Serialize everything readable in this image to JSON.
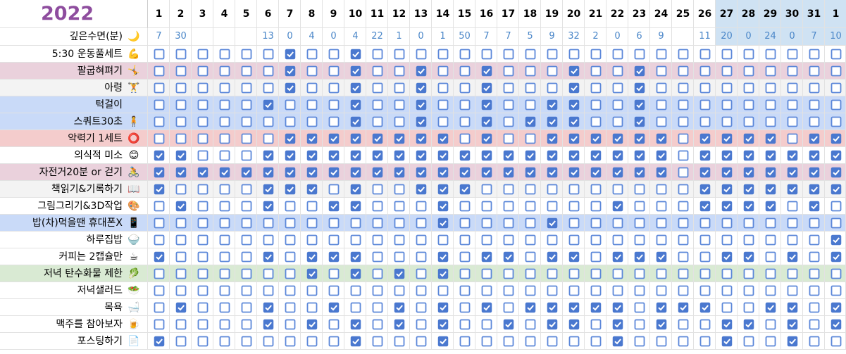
{
  "header": {
    "year": "2022",
    "days": [
      1,
      2,
      3,
      4,
      5,
      6,
      7,
      8,
      9,
      10,
      11,
      12,
      13,
      14,
      15,
      16,
      17,
      18,
      19,
      20,
      21,
      22,
      23,
      24,
      25,
      26,
      27,
      28,
      29,
      30,
      31,
      1
    ]
  },
  "sleep": {
    "label": "깊은수면(분)",
    "icon": "🌙",
    "values": [
      7,
      30,
      null,
      null,
      null,
      13,
      0,
      4,
      0,
      4,
      22,
      1,
      0,
      1,
      50,
      7,
      7,
      5,
      9,
      32,
      2,
      0,
      6,
      9,
      null,
      11,
      20,
      0,
      24,
      0,
      7,
      10
    ]
  },
  "habits": [
    {
      "label": "5:30 운동풀세트",
      "icon": "💪",
      "color": "#ffffff",
      "checks": [
        0,
        0,
        0,
        0,
        0,
        0,
        1,
        0,
        0,
        1,
        0,
        0,
        0,
        0,
        0,
        0,
        0,
        0,
        0,
        0,
        0,
        0,
        0,
        0,
        0,
        0,
        0,
        0,
        0,
        0,
        0,
        0
      ]
    },
    {
      "label": "팔굽혀펴기",
      "icon": "🤸",
      "color": "#ead1dc",
      "checks": [
        0,
        0,
        0,
        0,
        0,
        0,
        1,
        0,
        0,
        1,
        0,
        0,
        1,
        0,
        0,
        1,
        0,
        0,
        0,
        1,
        0,
        0,
        1,
        0,
        0,
        0,
        0,
        0,
        0,
        0,
        0,
        0
      ]
    },
    {
      "label": "아령",
      "icon": "🏋",
      "color": "#f3f3f3",
      "checks": [
        0,
        0,
        0,
        0,
        0,
        0,
        1,
        0,
        0,
        1,
        0,
        0,
        1,
        0,
        0,
        1,
        0,
        0,
        0,
        1,
        0,
        0,
        1,
        0,
        0,
        0,
        0,
        0,
        0,
        0,
        0,
        0
      ]
    },
    {
      "label": "턱걸이",
      "icon": "",
      "color": "#c9daf8",
      "checks": [
        0,
        0,
        0,
        0,
        0,
        1,
        0,
        0,
        0,
        1,
        0,
        0,
        1,
        0,
        0,
        1,
        0,
        0,
        1,
        1,
        0,
        0,
        1,
        0,
        0,
        0,
        0,
        0,
        0,
        0,
        0,
        0
      ]
    },
    {
      "label": "스쿼트30초",
      "icon": "🧍",
      "color": "#c9daf8",
      "checks": [
        0,
        0,
        0,
        0,
        0,
        0,
        0,
        0,
        0,
        1,
        0,
        0,
        1,
        0,
        0,
        1,
        0,
        1,
        1,
        1,
        0,
        0,
        1,
        0,
        0,
        0,
        0,
        0,
        0,
        0,
        0,
        0
      ]
    },
    {
      "label": "악력기 1세트",
      "icon": "⭕",
      "color": "#f4cccc",
      "checks": [
        0,
        0,
        0,
        0,
        0,
        0,
        1,
        1,
        1,
        1,
        1,
        1,
        1,
        1,
        0,
        1,
        0,
        0,
        1,
        1,
        1,
        1,
        1,
        1,
        0,
        1,
        1,
        1,
        1,
        0,
        1,
        1
      ]
    },
    {
      "label": "의식적 미소",
      "icon": "😊",
      "color": "#ffffff",
      "checks": [
        1,
        1,
        0,
        0,
        0,
        1,
        1,
        1,
        1,
        1,
        1,
        1,
        1,
        1,
        1,
        1,
        1,
        1,
        1,
        1,
        1,
        1,
        1,
        1,
        0,
        1,
        1,
        1,
        1,
        1,
        1,
        1
      ]
    },
    {
      "label": "자전거20분 or 걷기",
      "icon": "🚴",
      "color": "#ead1dc",
      "checks": [
        1,
        1,
        1,
        1,
        1,
        1,
        1,
        1,
        1,
        1,
        1,
        1,
        1,
        1,
        1,
        1,
        1,
        1,
        1,
        1,
        1,
        1,
        1,
        1,
        0,
        1,
        1,
        1,
        1,
        1,
        1,
        1
      ]
    },
    {
      "label": "책읽기&기록하기",
      "icon": "📖",
      "color": "#f3f3f3",
      "checks": [
        1,
        0,
        0,
        0,
        0,
        1,
        1,
        1,
        0,
        1,
        0,
        0,
        1,
        1,
        1,
        0,
        0,
        0,
        0,
        0,
        0,
        0,
        0,
        0,
        0,
        1,
        1,
        1,
        1,
        1,
        1,
        1
      ]
    },
    {
      "label": "그림그리기&3D작업",
      "icon": "🎨",
      "color": "#ffffff",
      "checks": [
        0,
        1,
        0,
        0,
        0,
        1,
        0,
        0,
        1,
        1,
        0,
        0,
        0,
        1,
        0,
        0,
        0,
        0,
        0,
        0,
        0,
        1,
        0,
        0,
        0,
        1,
        1,
        1,
        1,
        0,
        1,
        0
      ]
    },
    {
      "label": "밥(차)먹을땐 휴대폰X",
      "icon": "📱",
      "color": "#c9daf8",
      "checks": [
        0,
        0,
        0,
        0,
        0,
        0,
        0,
        0,
        0,
        0,
        0,
        0,
        0,
        1,
        0,
        0,
        0,
        0,
        1,
        0,
        0,
        0,
        0,
        0,
        0,
        0,
        0,
        0,
        0,
        0,
        0,
        0
      ]
    },
    {
      "label": "하루집밥",
      "icon": "🍚",
      "color": "#ffffff",
      "checks": [
        0,
        0,
        0,
        0,
        0,
        0,
        0,
        0,
        0,
        0,
        0,
        0,
        0,
        0,
        0,
        0,
        0,
        0,
        0,
        0,
        0,
        0,
        0,
        0,
        0,
        0,
        0,
        0,
        0,
        0,
        0,
        1
      ]
    },
    {
      "label": "커피는 2캡슐만",
      "icon": "☕",
      "color": "#ffffff",
      "checks": [
        1,
        0,
        0,
        0,
        0,
        1,
        0,
        1,
        1,
        1,
        0,
        0,
        0,
        1,
        0,
        1,
        1,
        0,
        1,
        1,
        0,
        1,
        1,
        1,
        0,
        0,
        1,
        1,
        0,
        1,
        0,
        1
      ]
    },
    {
      "label": "저녁 탄수화물 제한",
      "icon": "🥬",
      "color": "#d9ead3",
      "checks": [
        0,
        0,
        0,
        0,
        0,
        0,
        0,
        1,
        0,
        1,
        0,
        1,
        0,
        1,
        0,
        0,
        0,
        0,
        0,
        0,
        0,
        0,
        0,
        0,
        0,
        0,
        0,
        0,
        0,
        0,
        0,
        0
      ]
    },
    {
      "label": "저녁샐러드",
      "icon": "🥗",
      "color": "#ffffff",
      "checks": [
        0,
        0,
        0,
        0,
        0,
        0,
        0,
        0,
        0,
        0,
        0,
        0,
        0,
        0,
        0,
        0,
        0,
        0,
        0,
        0,
        0,
        0,
        0,
        0,
        0,
        0,
        0,
        0,
        0,
        0,
        0,
        0
      ]
    },
    {
      "label": "목욕",
      "icon": "🛁",
      "color": "#ffffff",
      "checks": [
        0,
        1,
        0,
        0,
        0,
        1,
        0,
        0,
        1,
        0,
        0,
        1,
        0,
        1,
        0,
        1,
        0,
        1,
        1,
        1,
        1,
        1,
        0,
        1,
        1,
        1,
        0,
        0,
        1,
        1,
        0,
        1
      ]
    },
    {
      "label": "맥주를 참아보자",
      "icon": "🍺",
      "color": "#ffffff",
      "checks": [
        0,
        0,
        0,
        0,
        0,
        1,
        0,
        1,
        0,
        1,
        0,
        1,
        0,
        1,
        0,
        0,
        1,
        0,
        1,
        1,
        0,
        1,
        0,
        1,
        0,
        0,
        1,
        1,
        0,
        1,
        0,
        1
      ]
    },
    {
      "label": "포스팅하기",
      "icon": "📄",
      "color": "#ffffff",
      "checks": [
        1,
        0,
        0,
        0,
        0,
        0,
        0,
        0,
        0,
        1,
        0,
        0,
        0,
        1,
        0,
        0,
        0,
        0,
        0,
        0,
        0,
        1,
        0,
        0,
        0,
        0,
        1,
        0,
        0,
        1,
        0,
        0
      ]
    }
  ]
}
